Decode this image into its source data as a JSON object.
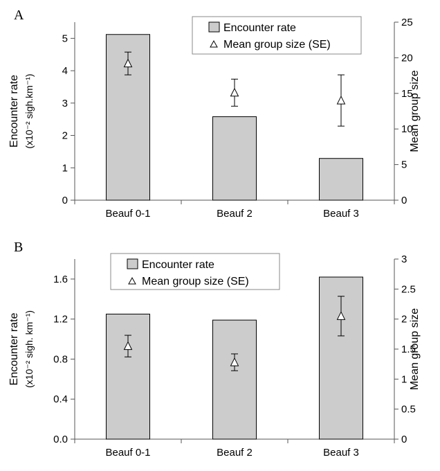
{
  "chart_data": [
    {
      "type": "bar",
      "panel_label": "A",
      "categories": [
        "Beauf 0-1",
        "Beauf 2",
        "Beauf 3"
      ],
      "series": [
        {
          "name": "Encounter rate",
          "axis": "left",
          "kind": "bar",
          "values": [
            5.12,
            2.58,
            1.29
          ]
        },
        {
          "name": "Mean group size (SE)",
          "axis": "right",
          "kind": "point",
          "values": [
            19.2,
            15.1,
            14.0
          ],
          "se": [
            1.6,
            1.9,
            3.6
          ]
        }
      ],
      "ylabel_left": "Encounter rate",
      "ylabel_left_sub": "(x10⁻² sigh.km⁻¹)",
      "ylabel_right": "Mean group size",
      "ylim_left": [
        0,
        5.5
      ],
      "yticks_left": [
        0,
        1,
        2,
        3,
        4,
        5
      ],
      "ytick_labels_left": [
        "0",
        "1",
        "2",
        "3",
        "4",
        "5"
      ],
      "ylim_right": [
        0,
        25
      ],
      "yticks_right": [
        0,
        5,
        10,
        15,
        20,
        25
      ],
      "ytick_labels_right": [
        "0",
        "5",
        "10",
        "15",
        "20",
        "25"
      ],
      "legend": {
        "position": "top-right",
        "entries": [
          "Encounter rate",
          "Mean group size (SE)"
        ]
      },
      "grid": false
    },
    {
      "type": "bar",
      "panel_label": "B",
      "categories": [
        "Beauf 0-1",
        "Beauf 2",
        "Beauf 3"
      ],
      "series": [
        {
          "name": "Encounter rate",
          "axis": "left",
          "kind": "bar",
          "values": [
            1.25,
            1.19,
            1.62
          ]
        },
        {
          "name": "Mean group size (SE)",
          "axis": "right",
          "kind": "point",
          "values": [
            1.55,
            1.28,
            2.05
          ],
          "se": [
            0.18,
            0.14,
            0.33
          ]
        }
      ],
      "ylabel_left": "Encounter rate",
      "ylabel_left_sub": "(x10⁻² sigh. km⁻¹)",
      "ylabel_right": "Mean group size",
      "ylim_left": [
        0,
        1.8
      ],
      "yticks_left": [
        0,
        0.4,
        0.8,
        1.2,
        1.6
      ],
      "ytick_labels_left": [
        "0.0",
        "0.4",
        "0.8",
        "1.2",
        "1.6"
      ],
      "ylim_right": [
        0,
        3
      ],
      "yticks_right": [
        0,
        0.5,
        1,
        1.5,
        2,
        2.5,
        3
      ],
      "ytick_labels_right": [
        "0",
        "0.5",
        "1",
        "1.5",
        "2",
        "2.5",
        "3"
      ],
      "legend": {
        "position": "top-center",
        "entries": [
          "Encounter rate",
          "Mean group size (SE)"
        ]
      },
      "grid": false
    }
  ]
}
